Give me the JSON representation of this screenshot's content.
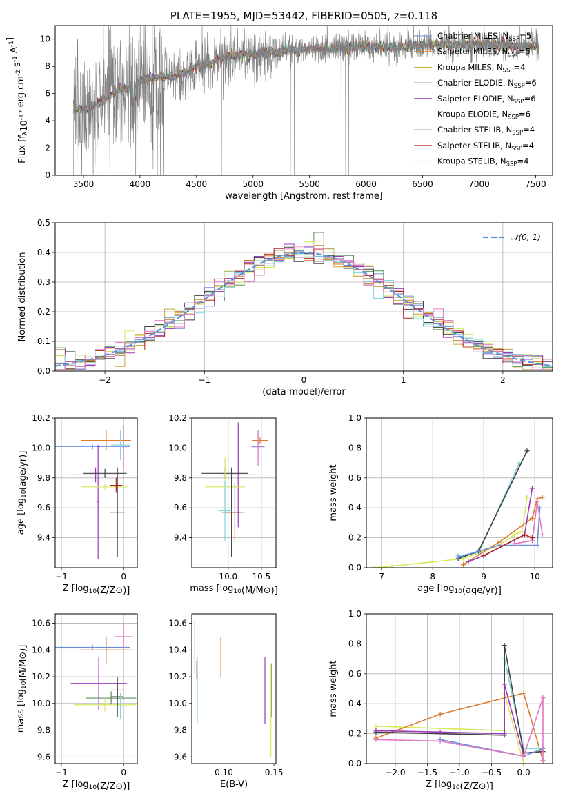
{
  "chart_data": [
    {
      "id": "spectrum",
      "type": "line",
      "title": "PLATE=1955, MJD=53442, FIBERID=0505, z=0.118",
      "xlabel": "wavelength [Angstrom, rest frame]",
      "ylabel": "Flux [f_λ10^-17 erg cm^-2 s^-1 A^-1]",
      "xlim": [
        3250,
        7650
      ],
      "ylim": [
        0,
        11
      ],
      "xticks": [
        3500,
        4000,
        4500,
        5000,
        5500,
        6000,
        6500,
        7000,
        7500
      ],
      "yticks": [
        0,
        2,
        4,
        6,
        8,
        10
      ],
      "grid": false,
      "legend_position": "right",
      "data_color": "#808080",
      "continuum": [
        [
          3410,
          5.0
        ],
        [
          3500,
          4.8
        ],
        [
          3600,
          5.2
        ],
        [
          3700,
          5.6
        ],
        [
          3800,
          6.3
        ],
        [
          3900,
          6.4
        ],
        [
          4000,
          7.0
        ],
        [
          4100,
          7.1
        ],
        [
          4200,
          7.3
        ],
        [
          4300,
          7.2
        ],
        [
          4400,
          7.6
        ],
        [
          4500,
          8.0
        ],
        [
          4600,
          8.1
        ],
        [
          4700,
          8.5
        ],
        [
          4800,
          8.7
        ],
        [
          4900,
          8.8
        ],
        [
          5000,
          8.9
        ],
        [
          5100,
          9.0
        ],
        [
          5200,
          9.0
        ],
        [
          5300,
          9.2
        ],
        [
          5400,
          9.2
        ],
        [
          5500,
          9.3
        ],
        [
          5600,
          9.4
        ],
        [
          5700,
          9.3
        ],
        [
          5800,
          9.4
        ],
        [
          5900,
          9.5
        ],
        [
          6000,
          9.5
        ],
        [
          6100,
          9.5
        ],
        [
          6200,
          9.4
        ],
        [
          6300,
          9.4
        ],
        [
          6400,
          9.5
        ],
        [
          6500,
          9.5
        ],
        [
          6600,
          9.6
        ],
        [
          6700,
          9.6
        ],
        [
          6800,
          9.6
        ],
        [
          6900,
          9.6
        ],
        [
          7000,
          9.6
        ],
        [
          7100,
          9.6
        ],
        [
          7200,
          9.6
        ],
        [
          7300,
          9.5
        ],
        [
          7400,
          9.5
        ],
        [
          7530,
          9.5
        ]
      ],
      "models": [
        {
          "label": "Chabrier MILES, N",
          "sub": "SSP",
          "n": "=5",
          "color": "#6c8ed6"
        },
        {
          "label": "Salpeter MILES, N",
          "sub": "SSP",
          "n": "=5",
          "color": "#db7b2e"
        },
        {
          "label": "Kroupa MILES, N",
          "sub": "SSP",
          "n": "=4",
          "color": "#c9a23a"
        },
        {
          "label": "Chabrier ELODIE, N",
          "sub": "SSP",
          "n": "=6",
          "color": "#5a8f5a"
        },
        {
          "label": "Salpeter ELODIE, N",
          "sub": "SSP",
          "n": "=6",
          "color": "#9b39b8"
        },
        {
          "label": "Kroupa ELODIE, N",
          "sub": "SSP",
          "n": "=6",
          "color": "#d8e85a"
        },
        {
          "label": "Chabrier STELIB, N",
          "sub": "SSP",
          "n": "=4",
          "color": "#404040"
        },
        {
          "label": "Salpeter STELIB, N",
          "sub": "SSP",
          "n": "=4",
          "color": "#b22222"
        },
        {
          "label": "Kroupa STELIB, N",
          "sub": "SSP",
          "n": "=4",
          "color": "#7fd3de"
        }
      ]
    },
    {
      "id": "residuals",
      "type": "line",
      "xlabel": "(data-model)/error",
      "ylabel": "Normed distribution",
      "xlim": [
        -2.5,
        2.5
      ],
      "ylim": [
        0,
        0.5
      ],
      "xticks": [
        -2,
        -1,
        0,
        1,
        2
      ],
      "yticks": [
        0.0,
        0.1,
        0.2,
        0.3,
        0.4,
        0.5
      ],
      "grid": true,
      "legend_position": "top-right",
      "legend_label": "𝒩(0, 1)",
      "gaussian_color": "#5b8fd6",
      "hist_colors": [
        "#6c8ed6",
        "#db7b2e",
        "#c9a23a",
        "#5a8f5a",
        "#9b39b8",
        "#d8e85a",
        "#404040",
        "#b22222",
        "#7fd3de",
        "#e377c2"
      ],
      "hist_bin_width": 0.1
    },
    {
      "id": "age_vs_Z",
      "type": "scatter",
      "xlabel": "Z [log10(Z/Z⊙)]",
      "ylabel": "age  [log10(age/yr)]",
      "xlim": [
        -1.1,
        0.22
      ],
      "ylim": [
        9.2,
        10.2
      ],
      "xticks": [
        -1,
        0
      ],
      "yticks": [
        9.4,
        9.6,
        9.8,
        10.0,
        10.2
      ],
      "grid": true,
      "points": [
        {
          "x": -0.5,
          "y": 10.01,
          "xerr": 0.6,
          "yerr": 0.02,
          "color": "#6c8ed6"
        },
        {
          "x": -0.28,
          "y": 10.05,
          "xerr": 0.4,
          "yerr": 0.07,
          "color": "#db7b2e"
        },
        {
          "x": -0.41,
          "y": 9.64,
          "xerr": 0.02,
          "yerr": 0.38,
          "color": "#9b39b8"
        },
        {
          "x": -0.45,
          "y": 9.82,
          "xerr": 0.4,
          "yerr": 0.05,
          "color": "#9b39b8"
        },
        {
          "x": -0.3,
          "y": 9.83,
          "xerr": 0.35,
          "yerr": 0.03,
          "color": "#404040"
        },
        {
          "x": -0.3,
          "y": 9.74,
          "xerr": 0.38,
          "yerr": 0.02,
          "color": "#d8e85a"
        },
        {
          "x": -0.1,
          "y": 9.57,
          "xerr": 0.12,
          "yerr": 0.3,
          "color": "#404040"
        },
        {
          "x": -0.12,
          "y": 9.75,
          "xerr": 0.1,
          "yerr": 0.05,
          "color": "#b22222"
        },
        {
          "x": 0.0,
          "y": 10.0,
          "xerr": 0.05,
          "yerr": 0.15,
          "color": "#e377c2"
        },
        {
          "x": -0.05,
          "y": 10.02,
          "xerr": 0.15,
          "yerr": 0.1,
          "color": "#7fd3de"
        }
      ]
    },
    {
      "id": "age_vs_mass",
      "type": "scatter",
      "xlabel": "mass [log10(M/M⊙)]",
      "ylabel": "",
      "xlim": [
        9.45,
        10.72
      ],
      "ylim": [
        9.2,
        10.2
      ],
      "xticks": [
        10.0,
        10.5
      ],
      "yticks": [
        9.4,
        9.6,
        9.8,
        10.0,
        10.2
      ],
      "grid": true,
      "points": [
        {
          "x": 10.48,
          "y": 10.05,
          "xerr": 0.12,
          "yerr": 0.02,
          "color": "#db7b2e"
        },
        {
          "x": 10.45,
          "y": 10.01,
          "xerr": 0.1,
          "yerr": 0.1,
          "color": "#6c8ed6"
        },
        {
          "x": 10.15,
          "y": 9.82,
          "xerr": 0.25,
          "yerr": 0.35,
          "color": "#9b39b8"
        },
        {
          "x": 9.95,
          "y": 9.83,
          "xerr": 0.35,
          "yerr": 0.04,
          "color": "#404040"
        },
        {
          "x": 9.95,
          "y": 9.74,
          "xerr": 0.3,
          "yerr": 0.2,
          "color": "#d8e85a"
        },
        {
          "x": 10.05,
          "y": 9.57,
          "xerr": 0.15,
          "yerr": 0.3,
          "color": "#404040"
        },
        {
          "x": 10.1,
          "y": 9.57,
          "xerr": 0.15,
          "yerr": 0.2,
          "color": "#b22222"
        },
        {
          "x": 10.45,
          "y": 10.0,
          "xerr": 0.1,
          "yerr": 0.12,
          "color": "#e377c2"
        },
        {
          "x": 9.95,
          "y": 9.58,
          "xerr": 0.1,
          "yerr": 0.2,
          "color": "#7fd3de"
        }
      ]
    },
    {
      "id": "weight_vs_age",
      "type": "line",
      "xlabel": "age  [log10(age/yr)]",
      "ylabel": "mass weight",
      "xlim": [
        6.7,
        10.35
      ],
      "ylim": [
        0,
        1
      ],
      "xticks": [
        7,
        8,
        9,
        10
      ],
      "yticks": [
        0.0,
        0.2,
        0.4,
        0.6,
        0.8,
        1.0
      ],
      "grid": true,
      "series": [
        {
          "color": "#d8e85a",
          "points": [
            [
              6.85,
              0.0
            ],
            [
              7.2,
              0.01
            ],
            [
              8.6,
              0.06
            ],
            [
              9.3,
              0.15
            ],
            [
              9.6,
              0.22
            ],
            [
              9.75,
              0.24
            ],
            [
              9.85,
              0.47
            ]
          ]
        },
        {
          "color": "#7fd3de",
          "points": [
            [
              8.5,
              0.08
            ],
            [
              8.9,
              0.1
            ],
            [
              9.7,
              0.7
            ]
          ]
        },
        {
          "color": "#404040",
          "points": [
            [
              8.5,
              0.06
            ],
            [
              8.9,
              0.11
            ],
            [
              9.85,
              0.78
            ]
          ]
        },
        {
          "color": "#db7b2e",
          "points": [
            [
              8.6,
              0.02
            ],
            [
              9.3,
              0.17
            ],
            [
              9.95,
              0.33
            ],
            [
              10.05,
              0.46
            ],
            [
              10.15,
              0.47
            ]
          ]
        },
        {
          "color": "#9b39b8",
          "points": [
            [
              8.7,
              0.04
            ],
            [
              9.0,
              0.08
            ],
            [
              9.8,
              0.22
            ],
            [
              9.95,
              0.53
            ]
          ]
        },
        {
          "color": "#6c8ed6",
          "points": [
            [
              8.5,
              0.07
            ],
            [
              9.3,
              0.15
            ],
            [
              10.05,
              0.15
            ],
            [
              10.1,
              0.4
            ]
          ]
        },
        {
          "color": "#e377c2",
          "points": [
            [
              9.6,
              0.16
            ],
            [
              9.95,
              0.18
            ],
            [
              10.05,
              0.44
            ],
            [
              10.15,
              0.22
            ]
          ]
        },
        {
          "color": "#b22222",
          "points": [
            [
              9.0,
              0.08
            ],
            [
              9.8,
              0.22
            ],
            [
              9.95,
              0.2
            ]
          ]
        }
      ]
    },
    {
      "id": "mass_vs_Z",
      "type": "scatter",
      "xlabel": "Z [log10(Z/Z⊙)]",
      "ylabel": "mass [log10(M/M⊙)]",
      "xlim": [
        -1.1,
        0.22
      ],
      "ylim": [
        9.55,
        10.67
      ],
      "xticks": [
        -1,
        0
      ],
      "yticks": [
        9.6,
        9.8,
        10.0,
        10.2,
        10.4,
        10.6
      ],
      "grid": true,
      "points": [
        {
          "x": -0.5,
          "y": 10.42,
          "xerr": 0.6,
          "yerr": 0.02,
          "color": "#6c8ed6"
        },
        {
          "x": -0.28,
          "y": 10.4,
          "xerr": 0.4,
          "yerr": 0.1,
          "color": "#db7b2e"
        },
        {
          "x": 0.0,
          "y": 10.5,
          "xerr": 0.15,
          "yerr": 0.1,
          "color": "#e377c2"
        },
        {
          "x": -0.4,
          "y": 10.15,
          "xerr": 0.45,
          "yerr": 0.2,
          "color": "#9b39b8"
        },
        {
          "x": -0.1,
          "y": 10.1,
          "xerr": 0.1,
          "yerr": 0.05,
          "color": "#b22222"
        },
        {
          "x": -0.2,
          "y": 10.04,
          "xerr": 0.4,
          "yerr": 0.05,
          "color": "#5a8f5a"
        },
        {
          "x": -0.3,
          "y": 9.99,
          "xerr": 0.5,
          "yerr": 0.05,
          "color": "#d8e85a"
        },
        {
          "x": -0.1,
          "y": 10.05,
          "xerr": 0.1,
          "yerr": 0.15,
          "color": "#404040"
        },
        {
          "x": -0.05,
          "y": 9.98,
          "xerr": 0.1,
          "yerr": 0.1,
          "color": "#7fd3de"
        }
      ]
    },
    {
      "id": "mass_vs_ebv",
      "type": "scatter",
      "xlabel": "E(B-V)",
      "ylabel": "",
      "xlim": [
        0.068,
        0.152
      ],
      "ylim": [
        9.55,
        10.67
      ],
      "xticks": [
        0.1,
        0.15
      ],
      "yticks": [
        9.6,
        9.8,
        10.0,
        10.2,
        10.4,
        10.6
      ],
      "grid": false,
      "points": [
        {
          "x": 0.071,
          "y": 10.42,
          "yerr": 0.2,
          "color": "#e377c2"
        },
        {
          "x": 0.073,
          "y": 10.25,
          "yerr": 0.07,
          "color": "#b22222"
        },
        {
          "x": 0.0735,
          "y": 10.1,
          "yerr": 0.25,
          "color": "#7fd3de"
        },
        {
          "x": 0.097,
          "y": 10.35,
          "yerr": 0.15,
          "color": "#db7b2e"
        },
        {
          "x": 0.141,
          "y": 10.1,
          "yerr": 0.25,
          "color": "#9b39b8"
        },
        {
          "x": 0.147,
          "y": 9.95,
          "yerr": 0.35,
          "color": "#d8e85a"
        },
        {
          "x": 0.148,
          "y": 10.1,
          "yerr": 0.2,
          "color": "#404040"
        }
      ]
    },
    {
      "id": "weight_vs_Z",
      "type": "line",
      "xlabel": "Z [log10(Z/Z⊙)]",
      "ylabel": "mass weight",
      "xlim": [
        -2.45,
        0.45
      ],
      "ylim": [
        0,
        1
      ],
      "xticks": [
        -2.0,
        -1.5,
        -1.0,
        -0.5,
        0.0
      ],
      "yticks": [
        0.0,
        0.2,
        0.4,
        0.6,
        0.8,
        1.0
      ],
      "grid": true,
      "series": [
        {
          "color": "#d8e85a",
          "points": [
            [
              -2.3,
              0.25
            ],
            [
              -0.3,
              0.22
            ],
            [
              -0.3,
              0.47
            ],
            [
              0.0,
              0.0
            ]
          ]
        },
        {
          "color": "#db7b2e",
          "points": [
            [
              -2.3,
              0.17
            ],
            [
              -1.3,
              0.33
            ],
            [
              0.0,
              0.47
            ],
            [
              0.3,
              0.02
            ]
          ]
        },
        {
          "color": "#7fd3de",
          "points": [
            [
              -0.3,
              0.7
            ],
            [
              0.0,
              0.1
            ],
            [
              0.3,
              0.1
            ]
          ]
        },
        {
          "color": "#404040",
          "points": [
            [
              -2.3,
              0.21
            ],
            [
              -0.3,
              0.19
            ],
            [
              -0.3,
              0.79
            ],
            [
              0.0,
              0.07
            ],
            [
              0.3,
              0.08
            ]
          ]
        },
        {
          "color": "#9b39b8",
          "points": [
            [
              -2.3,
              0.22
            ],
            [
              -1.3,
              0.21
            ],
            [
              -0.3,
              0.2
            ],
            [
              -0.3,
              0.53
            ],
            [
              0.0,
              0.05
            ]
          ]
        },
        {
          "color": "#6c8ed6",
          "points": [
            [
              -1.3,
              0.16
            ],
            [
              0.0,
              0.05
            ],
            [
              0.3,
              0.1
            ]
          ]
        },
        {
          "color": "#e377c2",
          "points": [
            [
              -2.3,
              0.16
            ],
            [
              -1.3,
              0.15
            ],
            [
              0.0,
              0.05
            ],
            [
              0.3,
              0.44
            ],
            [
              0.3,
              0.02
            ]
          ]
        }
      ]
    }
  ]
}
